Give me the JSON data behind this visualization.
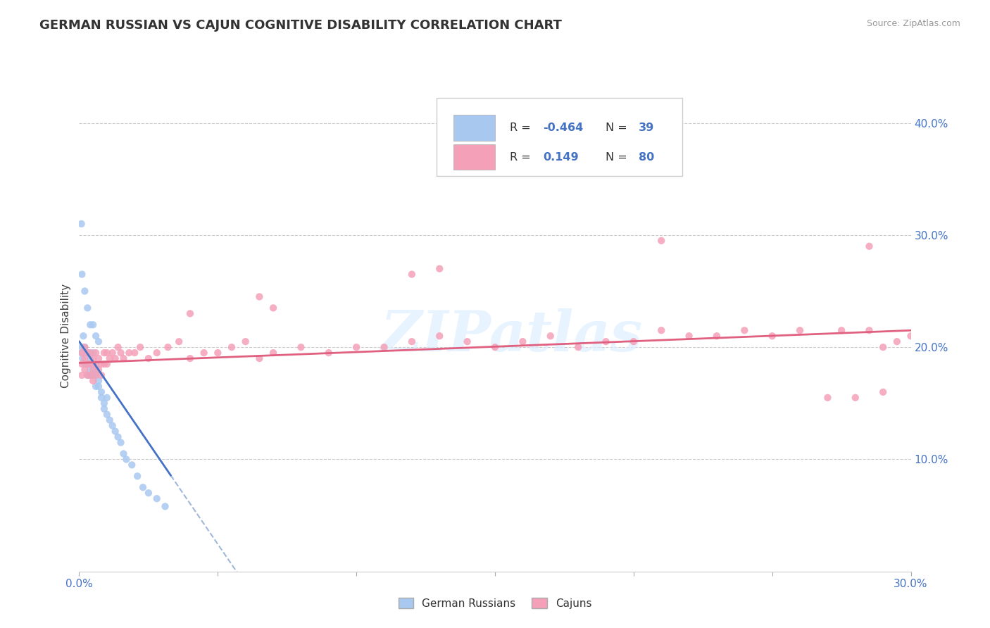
{
  "title": "GERMAN RUSSIAN VS CAJUN COGNITIVE DISABILITY CORRELATION CHART",
  "source": "Source: ZipAtlas.com",
  "ylabel_label": "Cognitive Disability",
  "xlim": [
    0.0,
    0.3
  ],
  "ylim": [
    0.0,
    0.42
  ],
  "color_blue": "#a8c8f0",
  "color_pink": "#f4a0b8",
  "color_blue_line": "#4472c4",
  "color_pink_line": "#e06080",
  "color_dash": "#a0b8d8",
  "watermark_text": "ZIPatlas",
  "r1": "-0.464",
  "n1": "39",
  "r2": "0.149",
  "n2": "80",
  "gr_x": [
    0.0008,
    0.001,
    0.0012,
    0.0015,
    0.002,
    0.002,
    0.003,
    0.003,
    0.003,
    0.004,
    0.004,
    0.004,
    0.005,
    0.005,
    0.005,
    0.006,
    0.006,
    0.006,
    0.007,
    0.007,
    0.008,
    0.008,
    0.009,
    0.009,
    0.01,
    0.01,
    0.011,
    0.012,
    0.013,
    0.014,
    0.015,
    0.016,
    0.017,
    0.019,
    0.021,
    0.023,
    0.025,
    0.028,
    0.031
  ],
  "gr_y": [
    0.195,
    0.2,
    0.19,
    0.21,
    0.2,
    0.185,
    0.195,
    0.185,
    0.175,
    0.18,
    0.19,
    0.175,
    0.195,
    0.185,
    0.175,
    0.165,
    0.175,
    0.18,
    0.17,
    0.165,
    0.16,
    0.155,
    0.15,
    0.145,
    0.155,
    0.14,
    0.135,
    0.13,
    0.125,
    0.12,
    0.115,
    0.105,
    0.1,
    0.095,
    0.085,
    0.075,
    0.07,
    0.065,
    0.058
  ],
  "gr_outlier_x": [
    0.0008
  ],
  "gr_outlier_y": [
    0.31
  ],
  "gr_extra_x": [
    0.001,
    0.002,
    0.003,
    0.004,
    0.005,
    0.006,
    0.007
  ],
  "gr_extra_y": [
    0.265,
    0.25,
    0.235,
    0.22,
    0.22,
    0.21,
    0.205
  ],
  "cj_x": [
    0.001,
    0.001,
    0.001,
    0.002,
    0.002,
    0.002,
    0.003,
    0.003,
    0.003,
    0.004,
    0.004,
    0.004,
    0.005,
    0.005,
    0.005,
    0.006,
    0.006,
    0.006,
    0.007,
    0.007,
    0.008,
    0.008,
    0.009,
    0.009,
    0.01,
    0.01,
    0.011,
    0.012,
    0.013,
    0.014,
    0.015,
    0.016,
    0.018,
    0.02,
    0.022,
    0.025,
    0.028,
    0.032,
    0.036,
    0.04,
    0.045,
    0.05,
    0.055,
    0.06,
    0.065,
    0.07,
    0.08,
    0.09,
    0.1,
    0.11,
    0.12,
    0.13,
    0.14,
    0.15,
    0.16,
    0.17,
    0.18,
    0.19,
    0.2,
    0.21,
    0.22,
    0.23,
    0.24,
    0.25,
    0.26,
    0.27,
    0.275,
    0.28,
    0.285,
    0.29,
    0.295,
    0.3,
    0.13,
    0.21,
    0.285,
    0.29,
    0.12,
    0.065,
    0.07,
    0.04
  ],
  "cj_y": [
    0.195,
    0.185,
    0.175,
    0.2,
    0.19,
    0.18,
    0.195,
    0.185,
    0.175,
    0.185,
    0.195,
    0.175,
    0.19,
    0.18,
    0.17,
    0.195,
    0.185,
    0.175,
    0.19,
    0.18,
    0.185,
    0.175,
    0.185,
    0.195,
    0.185,
    0.195,
    0.19,
    0.195,
    0.19,
    0.2,
    0.195,
    0.19,
    0.195,
    0.195,
    0.2,
    0.19,
    0.195,
    0.2,
    0.205,
    0.19,
    0.195,
    0.195,
    0.2,
    0.205,
    0.19,
    0.195,
    0.2,
    0.195,
    0.2,
    0.2,
    0.205,
    0.21,
    0.205,
    0.2,
    0.205,
    0.21,
    0.2,
    0.205,
    0.205,
    0.215,
    0.21,
    0.21,
    0.215,
    0.21,
    0.215,
    0.155,
    0.215,
    0.155,
    0.215,
    0.2,
    0.205,
    0.21,
    0.27,
    0.295,
    0.29,
    0.16,
    0.265,
    0.245,
    0.235,
    0.23
  ]
}
